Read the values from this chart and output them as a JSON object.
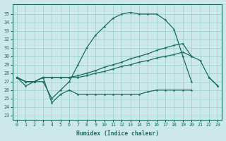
{
  "xlabel": "Humidex (Indice chaleur)",
  "bg_color": "#cce8e8",
  "line_color": "#1a6b60",
  "grid_color": "#99cccc",
  "xlim": [
    -0.5,
    23.5
  ],
  "ylim": [
    22.5,
    36.2
  ],
  "xticks": [
    0,
    1,
    2,
    3,
    4,
    5,
    6,
    7,
    8,
    9,
    10,
    11,
    12,
    13,
    14,
    15,
    16,
    17,
    18,
    19,
    20,
    21,
    22,
    23
  ],
  "yticks": [
    23,
    24,
    25,
    26,
    27,
    28,
    29,
    30,
    31,
    32,
    33,
    34,
    35
  ],
  "curve_main": [
    27.5,
    26.5,
    27.0,
    27.0,
    25.0,
    26.0,
    27.0,
    29.0,
    31.0,
    32.5,
    33.5,
    34.5,
    35.0,
    35.2,
    35.0,
    35.0,
    35.0,
    34.3,
    33.2,
    30.0,
    27.0,
    null,
    null,
    null
  ],
  "curve_diag1": [
    27.5,
    27.0,
    27.0,
    27.5,
    27.5,
    27.5,
    27.5,
    27.5,
    27.7,
    28.0,
    28.2,
    28.5,
    28.8,
    29.0,
    29.3,
    29.5,
    29.8,
    30.0,
    30.2,
    30.5,
    30.0,
    29.5,
    27.5,
    26.5
  ],
  "curve_diag2": [
    27.5,
    27.0,
    27.0,
    27.5,
    27.5,
    27.5,
    27.5,
    27.7,
    28.0,
    28.3,
    28.7,
    29.0,
    29.3,
    29.7,
    30.0,
    30.3,
    30.7,
    31.0,
    31.3,
    31.5,
    30.0,
    null,
    27.5,
    26.5
  ],
  "curve_low": [
    27.5,
    27.0,
    27.0,
    27.5,
    24.5,
    25.5,
    26.0,
    25.5,
    25.5,
    25.5,
    25.5,
    25.5,
    25.5,
    25.5,
    25.5,
    25.8,
    26.0,
    26.0,
    26.0,
    26.0,
    26.0,
    null,
    null,
    null
  ]
}
